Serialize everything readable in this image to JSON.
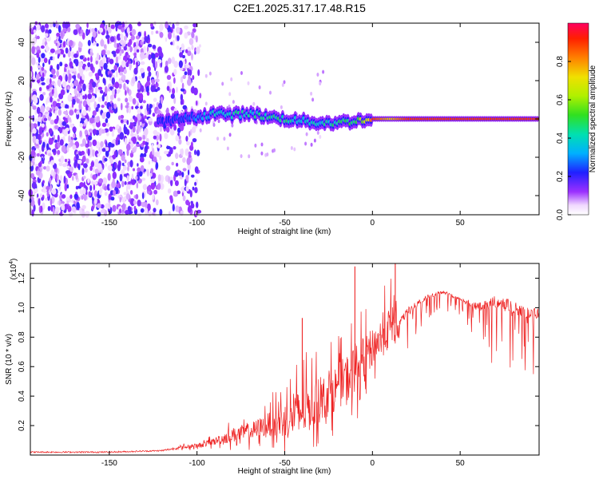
{
  "title": "C2E1.2025.317.17.48.R15",
  "chart_data": [
    {
      "type": "heatmap",
      "xlabel": "Height of straight line (km)",
      "ylabel": "Frequency (Hz)",
      "xlim": [
        -195,
        95
      ],
      "ylim": [
        -50,
        50
      ],
      "x_ticks": [
        -150,
        -100,
        -50,
        0,
        50
      ],
      "y_ticks": [
        -40,
        -20,
        0,
        20,
        40
      ],
      "colorbar": {
        "label": "Normalized spectral amplitude",
        "range": [
          0,
          1
        ],
        "ticks": [
          0.0,
          0.2,
          0.4,
          0.6,
          0.8
        ],
        "tick_labels": [
          "0.0",
          "0.2",
          "0.4",
          "0.6",
          "0.8"
        ]
      },
      "ridge_x": [
        -120,
        -110,
        -100,
        -90,
        -80,
        -70,
        -60,
        -50,
        -40,
        -30,
        -20,
        -10,
        0,
        10,
        20,
        30,
        50,
        70,
        90
      ],
      "ridge_freq": [
        -2,
        0,
        1,
        3,
        2,
        3,
        1,
        0,
        -1,
        -2,
        -2,
        -1,
        0,
        0,
        0,
        0,
        0,
        0,
        0
      ],
      "ridge_amplitude": [
        0.2,
        0.25,
        0.3,
        0.4,
        0.45,
        0.4,
        0.45,
        0.45,
        0.4,
        0.4,
        0.45,
        0.5,
        0.9,
        0.75,
        0.9,
        0.9,
        0.9,
        0.9,
        0.9
      ]
    },
    {
      "type": "line",
      "xlabel": "Height of straight line (km)",
      "ylabel": "SNR (10 * v/v)",
      "y_multiplier": "(x10",
      "y_multiplier_exp": "4",
      "y_multiplier_close": ")",
      "xlim": [
        -195,
        95
      ],
      "ylim": [
        0,
        1.3
      ],
      "x_ticks": [
        -150,
        -100,
        -50,
        0,
        50
      ],
      "y_ticks": [
        0.2,
        0.4,
        0.6,
        0.8,
        1.0,
        1.2
      ],
      "y_tick_labels": [
        "0.2",
        "0.4",
        "0.6",
        "0.8",
        "1.0",
        "1.2"
      ],
      "series": [
        {
          "name": "SNR",
          "color": "#ee2222",
          "x": [
            -195,
            -150,
            -120,
            -110,
            -100,
            -90,
            -80,
            -70,
            -60,
            -50,
            -40,
            -30,
            -20,
            -10,
            0,
            10,
            20,
            30,
            40,
            50,
            60,
            70,
            80,
            90,
            95
          ],
          "y": [
            0.02,
            0.02,
            0.03,
            0.05,
            0.06,
            0.09,
            0.13,
            0.15,
            0.2,
            0.22,
            0.28,
            0.35,
            0.45,
            0.55,
            0.72,
            0.85,
            1.0,
            1.08,
            1.12,
            1.07,
            1.03,
            1.08,
            1.05,
            1.0,
            1.0
          ],
          "noise": [
            0.01,
            0.01,
            0.01,
            0.02,
            0.03,
            0.05,
            0.1,
            0.12,
            0.15,
            0.25,
            0.35,
            0.3,
            0.3,
            0.35,
            0.25,
            0.3,
            0.2,
            0.12,
            0.1,
            0.1,
            0.2,
            0.35,
            0.35,
            0.35,
            0.3
          ],
          "peaks": [
            [
              -40,
              0.93
            ],
            [
              -10,
              1.28
            ],
            [
              13,
              1.3
            ]
          ]
        }
      ]
    }
  ]
}
